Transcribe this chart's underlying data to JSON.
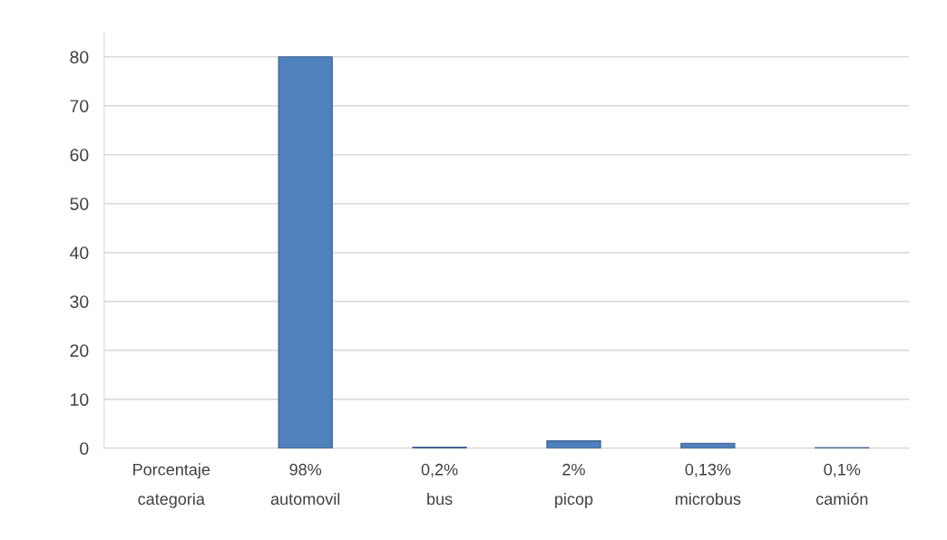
{
  "chart_data": {
    "type": "bar",
    "categories": [
      "Porcentaje\ncategoria",
      "98%\nautomovil",
      "0,2%\nbus",
      "2%\npicop",
      "0,13%\nmicrobus",
      "0,1%\ncamión"
    ],
    "values": [
      null,
      80,
      0.2,
      1.5,
      1,
      0.1
    ],
    "color": "#4f81bd",
    "ylim": [
      0,
      85
    ],
    "yticks": [
      0,
      10,
      20,
      30,
      40,
      50,
      60,
      70,
      80
    ],
    "grid": "y"
  }
}
